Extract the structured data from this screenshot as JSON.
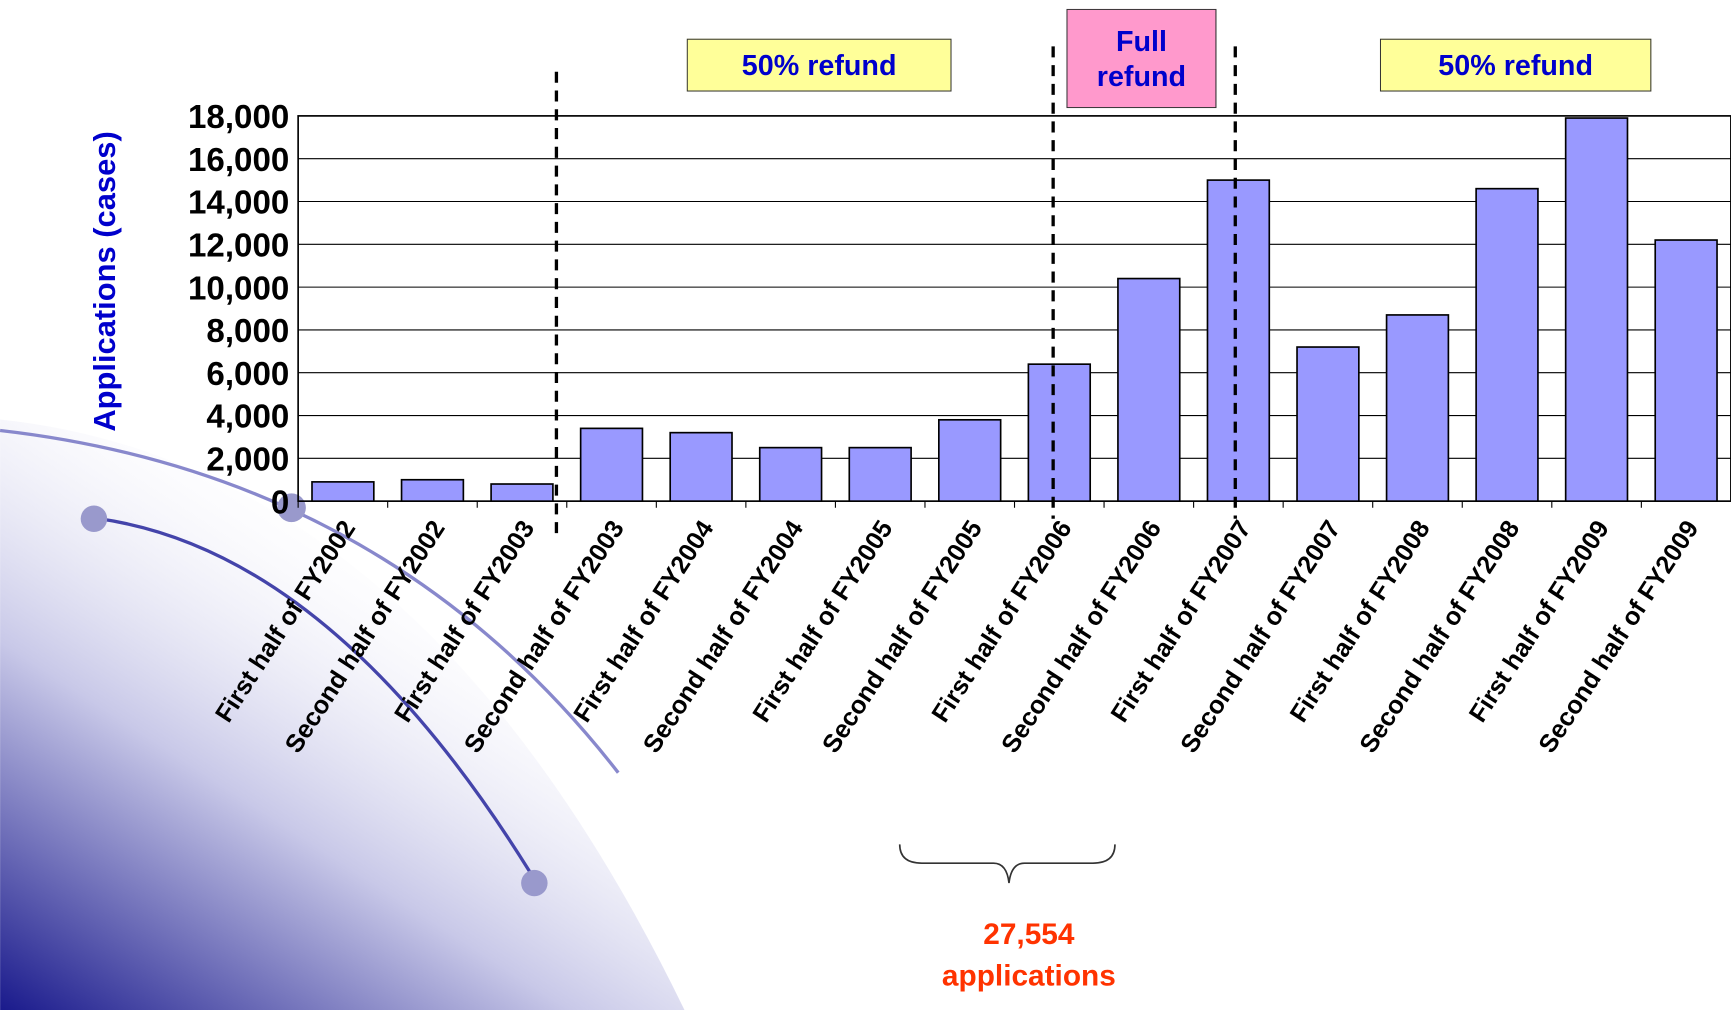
{
  "chart_data": {
    "type": "bar",
    "y_label": "Applications (cases)",
    "categories": [
      "First half of FY2002",
      "Second half of FY2002",
      "First half of FY2003",
      "Second half of FY2003",
      "First half of FY2004",
      "Second half of FY2004",
      "First half of FY2005",
      "Second half of FY2005",
      "First half of FY2006",
      "Second half of FY2006",
      "First half of FY2007",
      "Second half of FY2007",
      "First half of FY2008",
      "Second half of FY2008",
      "First half of FY2009",
      "Second half of FY2009"
    ],
    "values": [
      900,
      1000,
      800,
      3400,
      3200,
      2500,
      2500,
      3800,
      6400,
      10400,
      15000,
      7200,
      8700,
      14600,
      17900,
      12200
    ],
    "color": "#9999ff",
    "ylim": [
      0,
      18000
    ],
    "yticks": [
      0,
      {
        "value": 2000,
        "label": "2,000"
      },
      {
        "value": 4000,
        "label": "4,000"
      },
      {
        "value": 6000,
        "label": "6,000"
      },
      {
        "value": 8000,
        "label": "8,000"
      },
      {
        "value": 10000,
        "label": "10,000"
      },
      {
        "value": 12000,
        "label": "12,000"
      },
      {
        "value": 14000,
        "label": "14,000"
      },
      {
        "value": 16000,
        "label": "16,000"
      },
      {
        "value": 18000,
        "label": "18,000"
      }
    ],
    "grid": true,
    "annotations": [
      "50% refund",
      "Full refund",
      "50% refund",
      "27,554 applications"
    ]
  }
}
